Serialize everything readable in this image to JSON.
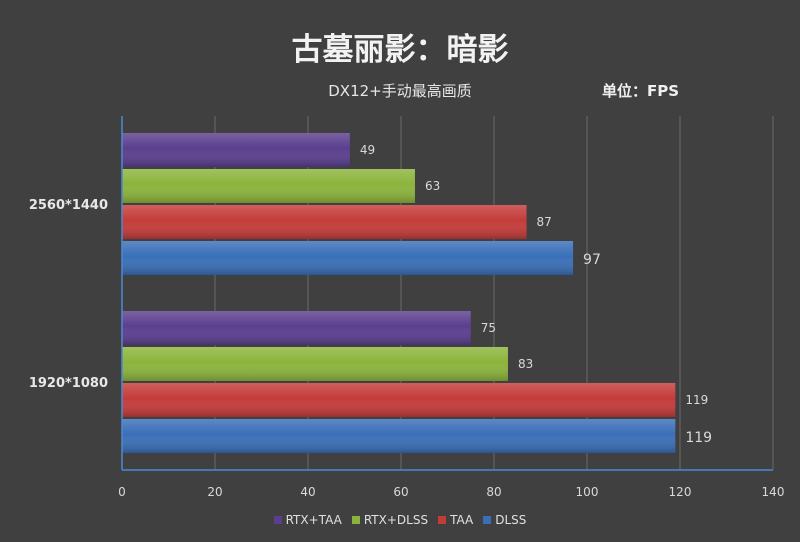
{
  "chart_data": {
    "type": "bar",
    "orientation": "horizontal",
    "title": "古墓丽影：暗影",
    "subtitle": "DX12+手动最高画质",
    "unit": "单位：FPS",
    "categories": [
      "2560*1440",
      "1920*1080"
    ],
    "series": [
      {
        "name": "RTX+TAA",
        "color": "#5b3f8f",
        "values": [
          49,
          75
        ]
      },
      {
        "name": "RTX+DLSS",
        "color": "#8cb43c",
        "values": [
          63,
          83
        ]
      },
      {
        "name": "TAA",
        "color": "#c43c3a",
        "values": [
          87,
          119
        ]
      },
      {
        "name": "DLSS",
        "color": "#3a6fb8",
        "values": [
          97,
          119
        ]
      }
    ],
    "xlim": [
      0,
      140
    ],
    "xticks": [
      0,
      20,
      40,
      60,
      80,
      100,
      120,
      140
    ],
    "grid": true,
    "legend_position": "bottom"
  }
}
